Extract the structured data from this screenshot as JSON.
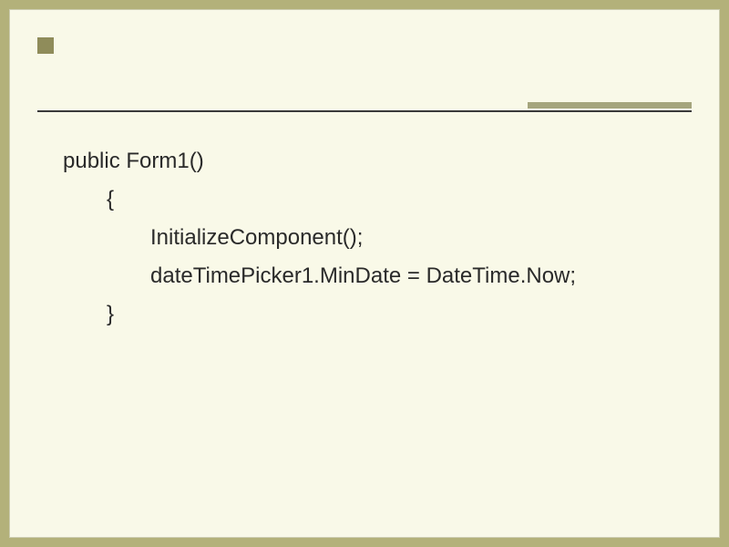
{
  "slide": {
    "background_color": "#f9f9e8",
    "outer_background": "#b3b17a",
    "accent_square_color": "#8f8c5a",
    "divider_color": "#3a3a3a",
    "divider_accent_color": "#a5a57d"
  },
  "code": {
    "font_family": "Arial",
    "font_size": 24,
    "color": "#2a2a2a",
    "lines": [
      {
        "indent": 0,
        "text": "public Form1()"
      },
      {
        "indent": 1,
        "text": "{"
      },
      {
        "indent": 2,
        "text": "InitializeComponent();"
      },
      {
        "indent": 2,
        "text": "dateTimePicker1.MinDate = DateTime.Now;"
      },
      {
        "indent": 1,
        "text": "}"
      }
    ]
  }
}
